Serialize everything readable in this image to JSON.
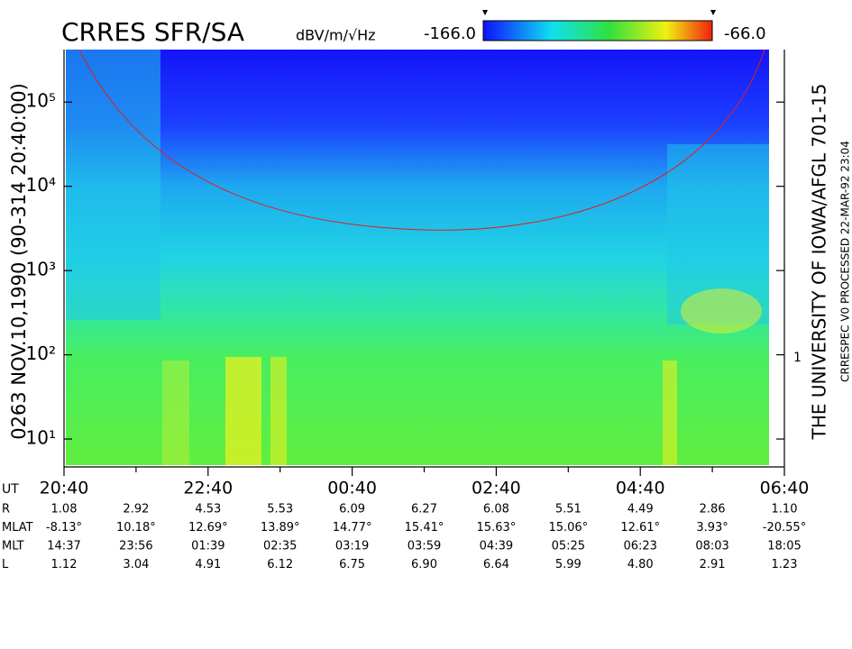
{
  "chart_data": {
    "type": "spectrogram",
    "title": "CRRES SFR/SA",
    "colorbar": {
      "label": "dBV/m/√Hz",
      "zlim": [
        {
          "value": -166,
          "label": "-166.0"
        },
        {
          "value": -66,
          "label": "-66.0"
        }
      ]
    },
    "log_y": true,
    "ylim": [
      4.9,
      420000
    ],
    "yticks": [
      {
        "value": 10,
        "label": "10¹"
      },
      {
        "value": 100,
        "label": "10²"
      },
      {
        "value": 1000,
        "label": "10³"
      },
      {
        "value": 10000,
        "label": "10⁴"
      },
      {
        "value": 100000,
        "label": "10⁵"
      }
    ],
    "y2_label": "1",
    "x_label": "UT",
    "x_categories": [
      "20:40",
      null,
      "22:40",
      null,
      "00:40",
      null,
      "02:40",
      null,
      "04:40",
      null,
      "06:40"
    ]
  },
  "ephemeris": {
    "rows": [
      {
        "name": "R",
        "values": [
          "1.08",
          "2.92",
          "4.53",
          "5.53",
          "6.09",
          "6.27",
          "6.08",
          "5.51",
          "4.49",
          "2.86",
          "1.10"
        ]
      },
      {
        "name": "MLAT",
        "values": [
          "-8.13°",
          "10.18°",
          "12.69°",
          "13.89°",
          "14.77°",
          "15.41°",
          "15.63°",
          "15.06°",
          "12.61°",
          "3.93°",
          "-20.55°"
        ]
      },
      {
        "name": "MLT",
        "values": [
          "14:37",
          "23:56",
          "01:39",
          "02:35",
          "03:19",
          "03:59",
          "04:39",
          "05:25",
          "06:23",
          "08:03",
          "18:05"
        ]
      },
      {
        "name": "L",
        "values": [
          "1.12",
          "3.04",
          "4.91",
          "6.12",
          "6.75",
          "6.90",
          "6.64",
          "5.99",
          "4.80",
          "2.91",
          "1.23"
        ]
      }
    ]
  },
  "side_text": {
    "left": "0263  NOV.10,1990  (90-314 20:40:00)",
    "right": "THE UNIVERSITY OF IOWA/AFGL 701-15",
    "right_small": "CRRESPEC V0   PROCESSED 22-MAR-92  23:04"
  }
}
